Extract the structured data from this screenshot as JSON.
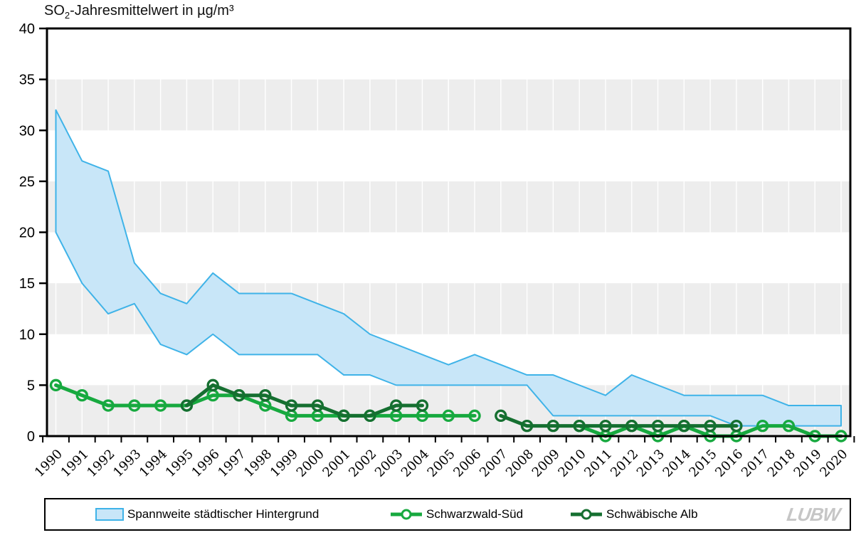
{
  "title": {
    "prefix": "SO",
    "sub": "2",
    "rest": "-Jahresmittelwert in µg/m³"
  },
  "logo": {
    "text": "LUBW"
  },
  "legend": [
    {
      "label": "Spannweite städtischer Hintergrund"
    },
    {
      "label": "Schwarzwald-Süd"
    },
    {
      "label": "Schwäbische Alb"
    }
  ],
  "colors": {
    "band_fill": "#C8E6F8",
    "band_stroke": "#3FB3E8",
    "bright_green": "#17A93F",
    "dark_green": "#156F30",
    "grid_band": "#EDEDED",
    "axis": "#000000",
    "text": "#000000",
    "logo_gray": "#C6C6C6"
  },
  "chart_data": {
    "type": "combo",
    "title": "SO₂-Jahresmittelwert in µg/m³",
    "xlabel": "",
    "ylabel": "SO₂-Jahresmittelwert in µg/m³",
    "ylim": [
      0,
      40
    ],
    "ytick_step": 5,
    "yticks": [
      0,
      5,
      10,
      15,
      20,
      25,
      30,
      35,
      40
    ],
    "grid": "alternating-horizontal-bands",
    "legend_position": "bottom",
    "categories": [
      1990,
      1991,
      1992,
      1993,
      1994,
      1995,
      1996,
      1997,
      1998,
      1999,
      2000,
      2001,
      2002,
      2003,
      2004,
      2005,
      2006,
      2007,
      2008,
      2009,
      2010,
      2011,
      2012,
      2013,
      2014,
      2015,
      2016,
      2017,
      2018,
      2019,
      2020
    ],
    "band": {
      "name": "Spannweite städtischer Hintergrund",
      "type": "area-range",
      "upper": [
        32,
        27,
        26,
        17,
        14,
        13,
        16,
        14,
        14,
        14,
        13,
        12,
        10,
        9,
        8,
        7,
        8,
        7,
        6,
        6,
        5,
        4,
        6,
        5,
        4,
        4,
        4,
        4,
        3,
        3,
        3
      ],
      "lower": [
        20,
        15,
        12,
        13,
        9,
        8,
        10,
        8,
        8,
        8,
        8,
        6,
        6,
        5,
        5,
        5,
        5,
        5,
        5,
        2,
        2,
        2,
        2,
        2,
        2,
        2,
        1,
        1,
        1,
        1,
        1
      ]
    },
    "series": [
      {
        "name": "Schwarzwald-Süd",
        "type": "line",
        "marker": "circle",
        "color_key": "bright_green",
        "values": [
          5,
          4,
          3,
          3,
          3,
          3,
          4,
          4,
          3,
          2,
          2,
          2,
          2,
          2,
          2,
          2,
          2,
          null,
          null,
          null,
          1,
          0,
          1,
          0,
          1,
          0,
          0,
          1,
          1,
          0,
          0
        ]
      },
      {
        "name": "Schwäbische Alb",
        "type": "line",
        "marker": "circle",
        "color_key": "dark_green",
        "values": [
          null,
          null,
          null,
          null,
          null,
          3,
          5,
          4,
          4,
          3,
          3,
          2,
          2,
          3,
          3,
          null,
          null,
          2,
          1,
          1,
          1,
          1,
          1,
          1,
          1,
          1,
          1,
          null,
          null,
          null,
          null
        ]
      }
    ]
  }
}
